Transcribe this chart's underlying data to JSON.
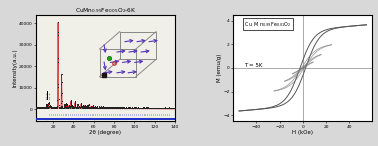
{
  "title_left": "CuMn$_{0.95}$Fe$_{0.05}$O$_2$-6K",
  "xlabel_left": "2θ (degree)",
  "ylabel_left": "Intensity(a.u.)",
  "xlabel_right": "H (kOe)",
  "ylabel_right": "M (emu/g)",
  "annotation_right": "T = 5K",
  "xlim_left": [
    3,
    140
  ],
  "ylim_left": [
    -5500,
    44000
  ],
  "xlim_right": [
    -60,
    60
  ],
  "ylim_right": [
    -4.5,
    4.5
  ],
  "bg_color": "#d8d8d8",
  "inset_bg": "#c8d8e4",
  "arrow_color": "#5533bb",
  "main_line_color": "#cc1111",
  "obs_line_color": "#111111",
  "diff_line_color": "#2233cc",
  "tick_row_colors": [
    "#dd3333",
    "#3344cc",
    "#3344cc",
    "#33aa33",
    "#9933aa"
  ],
  "panel_bg": "#f0efe8"
}
